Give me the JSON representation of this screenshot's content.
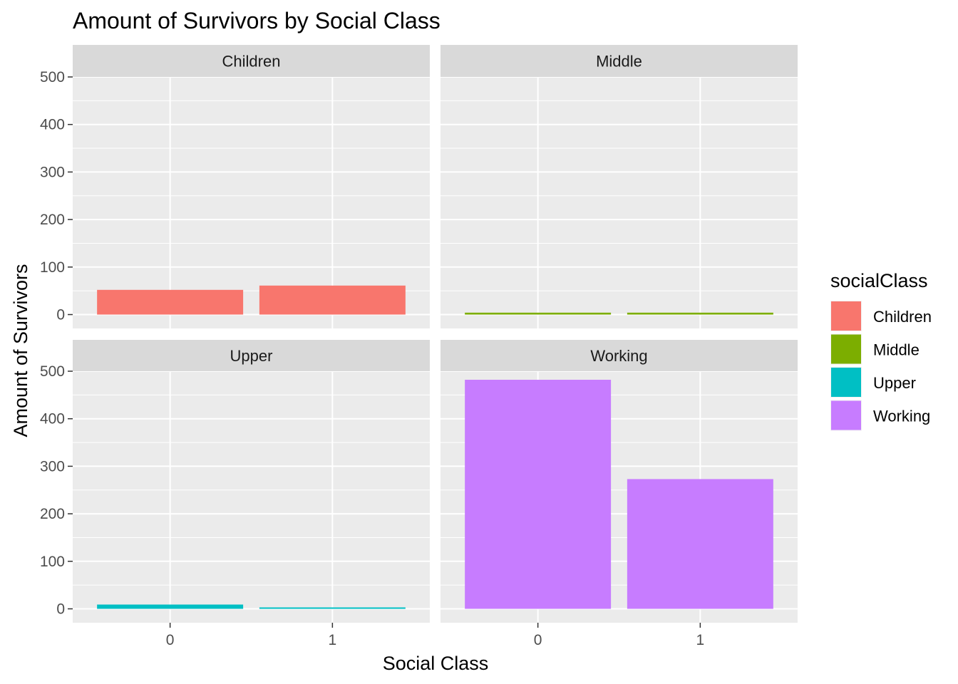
{
  "chart_data": {
    "type": "bar",
    "title": "Amount of Survivors by Social Class",
    "xlabel": "Social Class",
    "ylabel": "Amount of Survivors",
    "categories": [
      "0",
      "1"
    ],
    "ylim": [
      0,
      500
    ],
    "y_ticks": [
      "0",
      "100",
      "200",
      "300",
      "400",
      "500"
    ],
    "grid": true,
    "legend": {
      "title": "socialClass",
      "placement": "right",
      "items": [
        {
          "label": "Children",
          "color": "#F8766D"
        },
        {
          "label": "Middle",
          "color": "#7CAE00"
        },
        {
          "label": "Upper",
          "color": "#00BFC4"
        },
        {
          "label": "Working",
          "color": "#C77CFF"
        }
      ]
    },
    "facets": [
      {
        "name": "Children",
        "color": "#F8766D",
        "values": [
          52,
          61
        ]
      },
      {
        "name": "Middle",
        "color": "#7CAE00",
        "values": [
          4,
          4
        ]
      },
      {
        "name": "Upper",
        "color": "#00BFC4",
        "values": [
          9,
          3
        ]
      },
      {
        "name": "Working",
        "color": "#C77CFF",
        "values": [
          482,
          273
        ]
      }
    ]
  }
}
